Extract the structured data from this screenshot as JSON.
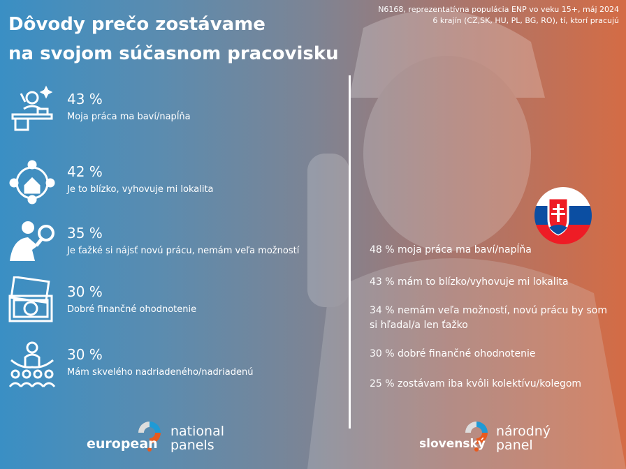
{
  "title": {
    "line1": "Dôvody prečo zostávame",
    "line2": "na svojom súčasnom pracovisku"
  },
  "meta": {
    "line1": "N6168, reprezentatívna populácia ENP vo veku 15+, máj 2024",
    "line2": "6 krajín (CZ,SK, HU, PL, BG, RO), tí, ktorí pracujú"
  },
  "international": [
    {
      "pct": "43 %",
      "label": "Moja práca ma baví/napĺňa",
      "icon": "happy-worker-icon"
    },
    {
      "pct": "42 %",
      "label": "Je to blízko, vyhovuje mi lokalita",
      "icon": "location-home-icon"
    },
    {
      "pct": "35 %",
      "label": "Je ťažké si nájsť novú prácu, nemám veľa možností",
      "icon": "search-person-icon"
    },
    {
      "pct": "30 %",
      "label": "Dobré finančné ohodnotenie",
      "icon": "money-icon"
    },
    {
      "pct": "30 %",
      "label": "Mám skvelého nadriadeného/nadriadenú",
      "icon": "team-leader-icon"
    }
  ],
  "slovakia": {
    "flag": "slovakia-flag-icon",
    "items": [
      "48 % moja práca ma baví/napĺňa",
      "43 % mám to blízko/vyhovuje mi lokalita",
      "34 % nemám veľa možností, novú prácu by som\nsi hľadal/a len ťažko",
      "30 % dobré finančné ohodnotenie",
      "25 % zostávam iba kvôli kolektívu/kolegom"
    ]
  },
  "logos": {
    "enp": {
      "word1": "european",
      "word2": "national",
      "word3": "panels"
    },
    "snp": {
      "word1": "slovenský",
      "word2": "národný",
      "word3": "panel"
    }
  },
  "colors": {
    "blue": "#3a8fc4",
    "orange": "#d46c45",
    "logo_blue": "#1e9ad6",
    "logo_orange": "#e85a1e"
  }
}
